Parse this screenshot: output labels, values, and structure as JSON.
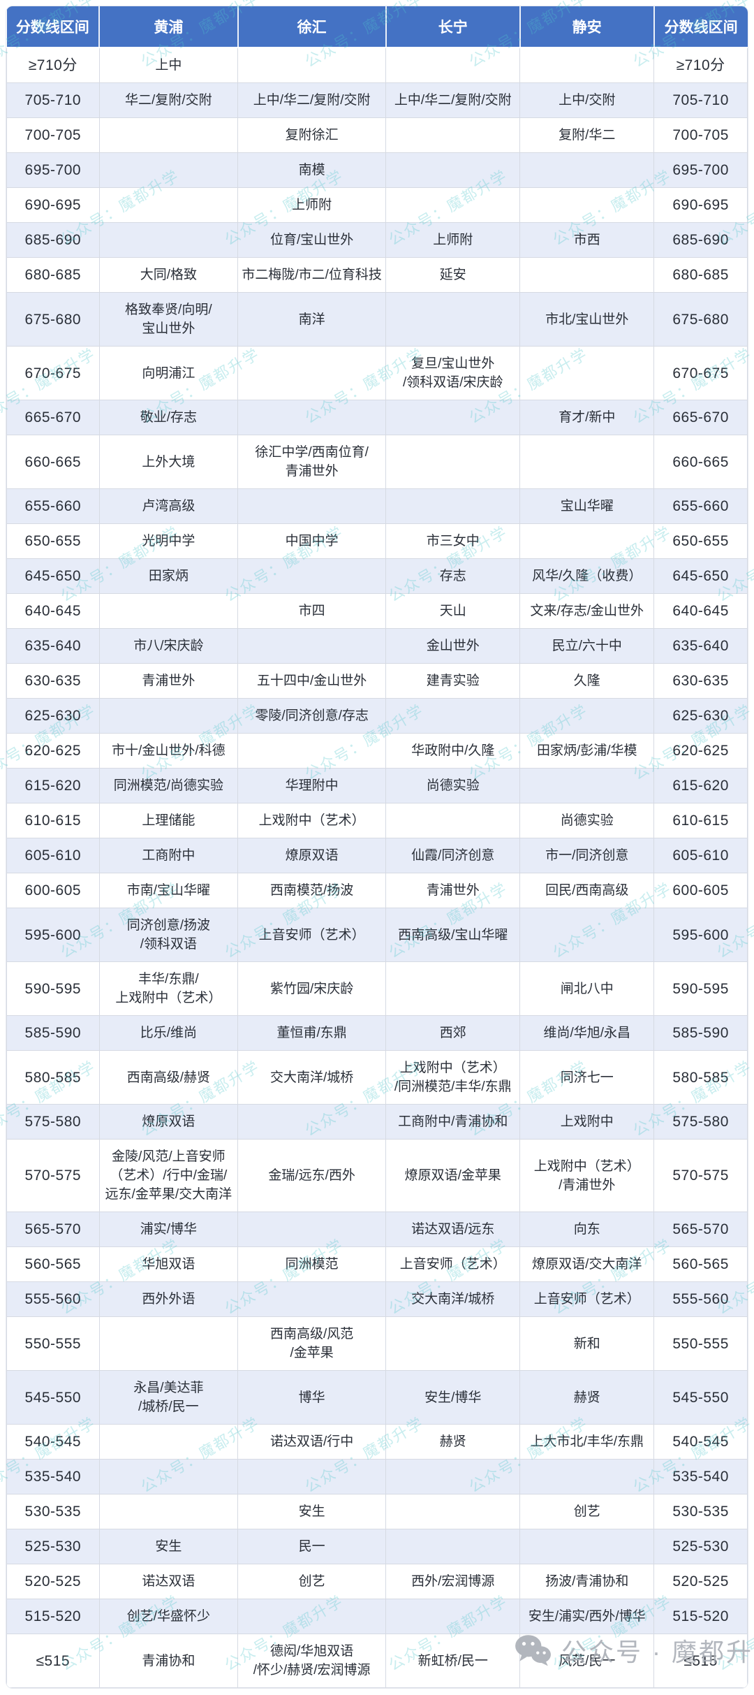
{
  "colors": {
    "header_bg": "#4472C4",
    "header_text": "#FFFFFF",
    "row_odd_bg": "#FFFFFF",
    "row_even_bg": "#E7ECF8",
    "border": "#D6DAE3",
    "cell_text": "#2A2F38",
    "watermark_teal": "#4EC7CB",
    "watermark_gray": "#A8ADB5"
  },
  "table": {
    "headers": [
      "分数线区间",
      "黄浦",
      "徐汇",
      "长宁",
      "静安",
      "分数线区间"
    ],
    "column_keys": [
      "score-range-left",
      "huangpu",
      "xuhui",
      "changning",
      "jingan",
      "score-range-right"
    ],
    "rows": [
      {
        "range": "≥710分",
        "cells": [
          "上中",
          "",
          "",
          ""
        ]
      },
      {
        "range": "705-710",
        "cells": [
          "华二/复附/交附",
          "上中/华二/复附/交附",
          "上中/华二/复附/交附",
          "上中/交附"
        ]
      },
      {
        "range": "700-705",
        "cells": [
          "",
          "复附徐汇",
          "",
          "复附/华二"
        ]
      },
      {
        "range": "695-700",
        "cells": [
          "",
          "南模",
          "",
          ""
        ]
      },
      {
        "range": "690-695",
        "cells": [
          "",
          "上师附",
          "",
          ""
        ]
      },
      {
        "range": "685-690",
        "cells": [
          "",
          "位育/宝山世外",
          "上师附",
          "市西"
        ]
      },
      {
        "range": "680-685",
        "cells": [
          "大同/格致",
          "市二梅陇/市二/位育科技",
          "延安",
          ""
        ]
      },
      {
        "range": "675-680",
        "cells": [
          "格致奉贤/向明/\n宝山世外",
          "南洋",
          "",
          "市北/宝山世外"
        ]
      },
      {
        "range": "670-675",
        "cells": [
          "向明浦江",
          "",
          "复旦/宝山世外\n/领科双语/宋庆龄",
          ""
        ]
      },
      {
        "range": "665-670",
        "cells": [
          "敬业/存志",
          "",
          "",
          "育才/新中"
        ]
      },
      {
        "range": "660-665",
        "cells": [
          "上外大境",
          "徐汇中学/西南位育/\n青浦世外",
          "",
          ""
        ]
      },
      {
        "range": "655-660",
        "cells": [
          "卢湾高级",
          "",
          "",
          "宝山华曜"
        ]
      },
      {
        "range": "650-655",
        "cells": [
          "光明中学",
          "中国中学",
          "市三女中",
          ""
        ]
      },
      {
        "range": "645-650",
        "cells": [
          "田家炳",
          "",
          "存志",
          "风华/久隆（收费）"
        ]
      },
      {
        "range": "640-645",
        "cells": [
          "",
          "市四",
          "天山",
          "文来/存志/金山世外"
        ]
      },
      {
        "range": "635-640",
        "cells": [
          "市八/宋庆龄",
          "",
          "金山世外",
          "民立/六十中"
        ]
      },
      {
        "range": "630-635",
        "cells": [
          "青浦世外",
          "五十四中/金山世外",
          "建青实验",
          "久隆"
        ]
      },
      {
        "range": "625-630",
        "cells": [
          "",
          "零陵/同济创意/存志",
          "",
          ""
        ]
      },
      {
        "range": "620-625",
        "cells": [
          "市十/金山世外/科德",
          "",
          "华政附中/久隆",
          "田家炳/彭浦/华模"
        ]
      },
      {
        "range": "615-620",
        "cells": [
          "同洲模范/尚德实验",
          "华理附中",
          "尚德实验",
          ""
        ]
      },
      {
        "range": "610-615",
        "cells": [
          "上理储能",
          "上戏附中（艺术）",
          "",
          "尚德实验"
        ]
      },
      {
        "range": "605-610",
        "cells": [
          "工商附中",
          "燎原双语",
          "仙霞/同济创意",
          "市一/同济创意"
        ]
      },
      {
        "range": "600-605",
        "cells": [
          "市南/宝山华曜",
          "西南模范/扬波",
          "青浦世外",
          "回民/西南高级"
        ]
      },
      {
        "range": "595-600",
        "cells": [
          "同济创意/扬波\n/领科双语",
          "上音安师（艺术）",
          "西南高级/宝山华曜",
          ""
        ]
      },
      {
        "range": "590-595",
        "cells": [
          "丰华/东鼎/\n上戏附中（艺术）",
          "紫竹园/宋庆龄",
          "",
          "闸北八中"
        ]
      },
      {
        "range": "585-590",
        "cells": [
          "比乐/维尚",
          "董恒甫/东鼎",
          "西郊",
          "维尚/华旭/永昌"
        ]
      },
      {
        "range": "580-585",
        "cells": [
          "西南高级/赫贤",
          "交大南洋/城桥",
          "上戏附中（艺术）\n/同洲模范/丰华/东鼎",
          "同济七一"
        ]
      },
      {
        "range": "575-580",
        "cells": [
          "燎原双语",
          "",
          "工商附中/青浦协和",
          "上戏附中"
        ]
      },
      {
        "range": "570-575",
        "cells": [
          "金陵/风范/上音安师\n（艺术）/行中/金瑞/\n远东/金苹果/交大南洋",
          "金瑞/远东/西外",
          "燎原双语/金苹果",
          "上戏附中（艺术）\n/青浦世外"
        ]
      },
      {
        "range": "565-570",
        "cells": [
          "浦实/博华",
          "",
          "诺达双语/远东",
          "向东"
        ]
      },
      {
        "range": "560-565",
        "cells": [
          "华旭双语",
          "同洲模范",
          "上音安师（艺术）",
          "燎原双语/交大南洋"
        ]
      },
      {
        "range": "555-560",
        "cells": [
          "西外外语",
          "",
          "交大南洋/城桥",
          "上音安师（艺术）"
        ]
      },
      {
        "range": "550-555",
        "cells": [
          "",
          "西南高级/风范\n/金苹果",
          "",
          "新和"
        ]
      },
      {
        "range": "545-550",
        "cells": [
          "永昌/美达菲\n/城桥/民一",
          "博华",
          "安生/博华",
          "赫贤"
        ]
      },
      {
        "range": "540-545",
        "cells": [
          "",
          "诺达双语/行中",
          "赫贤",
          "上大市北/丰华/东鼎"
        ]
      },
      {
        "range": "535-540",
        "cells": [
          "",
          "",
          "",
          ""
        ]
      },
      {
        "range": "530-535",
        "cells": [
          "",
          "安生",
          "",
          "创艺"
        ]
      },
      {
        "range": "525-530",
        "cells": [
          "安生",
          "民一",
          "",
          ""
        ]
      },
      {
        "range": "520-525",
        "cells": [
          "诺达双语",
          "创艺",
          "西外/宏润博源",
          "扬波/青浦协和"
        ]
      },
      {
        "range": "515-520",
        "cells": [
          "创艺/华盛怀少",
          "",
          "",
          "安生/浦实/西外/博华"
        ]
      },
      {
        "range": "≤515",
        "cells": [
          "青浦协和",
          "德闳/华旭双语\n/怀少/赫贤/宏润博源",
          "新虹桥/民一",
          "风范/民一"
        ]
      }
    ]
  },
  "watermark": {
    "text": "公众号：魔都升学"
  },
  "footer_watermark": {
    "text": "公众号 · 魔都升学",
    "icon": "wechat-icon"
  }
}
